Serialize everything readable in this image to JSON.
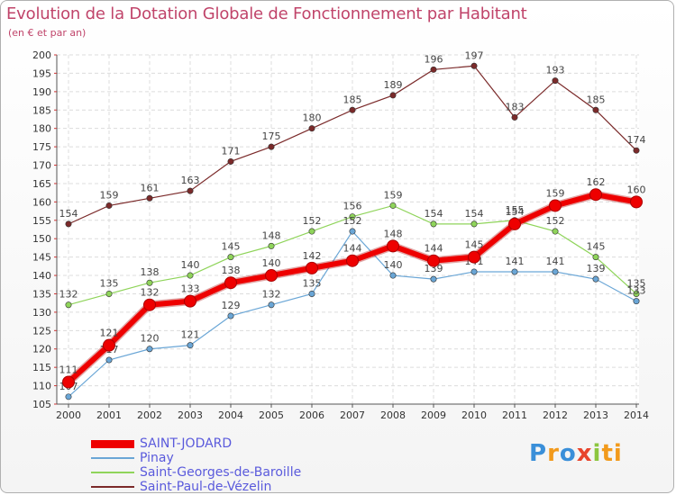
{
  "header": {
    "title": "Evolution de la Dotation Globale de Fonctionnement par Habitant",
    "subtitle": "(en € et par an)"
  },
  "logo": {
    "text": "Proxiti",
    "letters": [
      "P",
      "r",
      "o",
      "x",
      "i",
      "ti"
    ]
  },
  "chart_data": {
    "type": "line",
    "title": "Evolution de la Dotation Globale de Fonctionnement par Habitant",
    "subtitle": "(en € et par an)",
    "xlabel": "",
    "ylabel": "",
    "ylim": [
      105,
      200
    ],
    "y_ticks": [
      105,
      110,
      115,
      120,
      125,
      130,
      135,
      140,
      145,
      150,
      155,
      160,
      165,
      170,
      175,
      180,
      185,
      190,
      195,
      200
    ],
    "categories": [
      "2000",
      "2001",
      "2002",
      "2003",
      "2004",
      "2005",
      "2006",
      "2007",
      "2008",
      "2009",
      "2010",
      "2011",
      "2012",
      "2013",
      "2014"
    ],
    "grid": true,
    "legend_position": "bottom-left",
    "series": [
      {
        "name": "Saint-Paul-de-Vézelin",
        "color": "#7b2a2a",
        "emphasis": false,
        "values": [
          154,
          159,
          161,
          163,
          171,
          175,
          180,
          185,
          189,
          196,
          197,
          183,
          193,
          185,
          174
        ]
      },
      {
        "name": "Saint-Georges-de-Baroille",
        "color": "#8fd45a",
        "emphasis": false,
        "values": [
          132,
          135,
          138,
          140,
          145,
          148,
          152,
          156,
          159,
          154,
          154,
          155,
          152,
          145,
          135
        ]
      },
      {
        "name": "Pinay",
        "color": "#6aa6d6",
        "emphasis": false,
        "values": [
          107,
          117,
          120,
          121,
          129,
          132,
          135,
          152,
          140,
          139,
          141,
          141,
          141,
          139,
          133
        ]
      },
      {
        "name": "SAINT-JODARD",
        "color": "#ee0000",
        "emphasis": true,
        "values": [
          111,
          121,
          132,
          133,
          138,
          140,
          142,
          144,
          148,
          144,
          145,
          154,
          159,
          162,
          160
        ]
      }
    ],
    "legend_order": [
      "SAINT-JODARD",
      "Pinay",
      "Saint-Georges-de-Baroille",
      "Saint-Paul-de-Vézelin"
    ]
  }
}
